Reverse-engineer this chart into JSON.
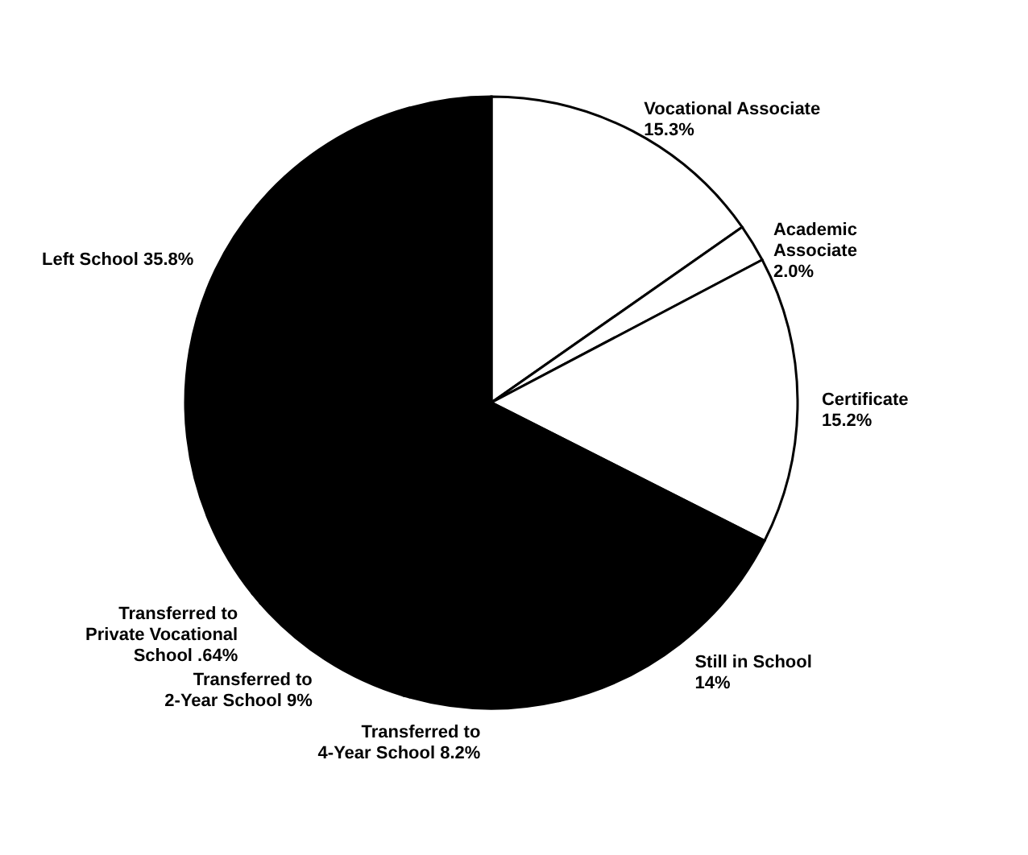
{
  "chart_data": {
    "type": "pie",
    "categories": [
      "Vocational Associate",
      "Academic\nAssociate",
      "Certificate",
      "Still in School",
      "Transferred to\n4-Year School",
      "Transferred to\n2-Year School",
      "Transferred to\nPrivate Vocational\nSchool",
      "Left School"
    ],
    "values": [
      15.3,
      2.0,
      15.2,
      14,
      8.2,
      9,
      0.64,
      35.8
    ],
    "value_labels": [
      "15.3%",
      "2.0%",
      "15.2%",
      "14%",
      "8.2%",
      "9%",
      ".64%",
      "35.8%"
    ],
    "colors": [
      "#ffffff",
      "#ffffff",
      "#ffffff",
      "#000000",
      "#000000",
      "#000000",
      "#000000",
      "#000000"
    ]
  }
}
